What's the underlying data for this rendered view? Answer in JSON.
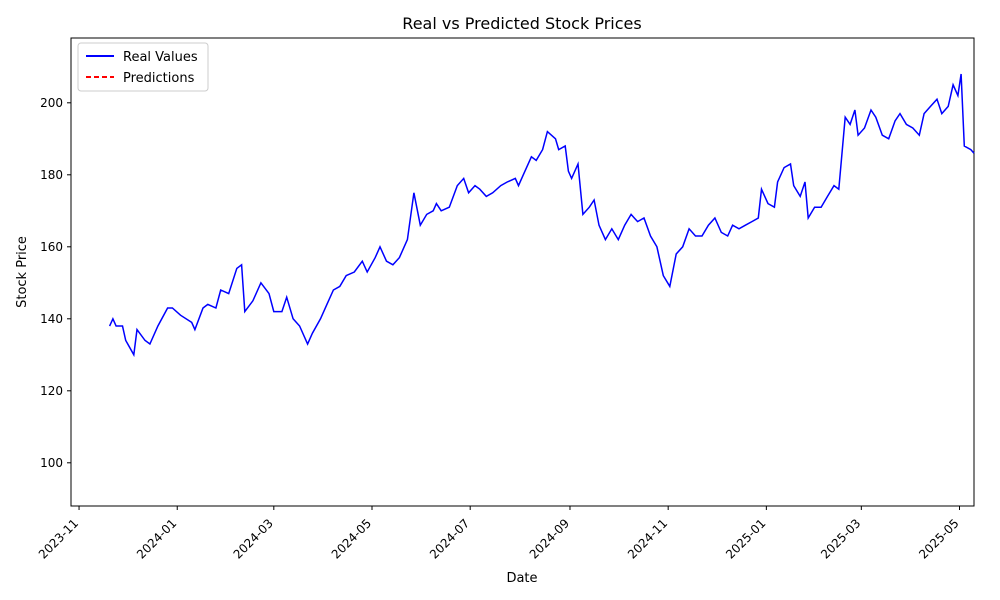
{
  "chart_data": {
    "type": "line",
    "title": "Real vs Predicted Stock Prices",
    "xlabel": "Date",
    "ylabel": "Stock Price",
    "x_ticks": [
      "2023-11",
      "2024-01",
      "2024-03",
      "2024-05",
      "2024-07",
      "2024-09",
      "2024-11",
      "2025-01",
      "2025-03",
      "2025-05"
    ],
    "y_ticks": [
      100,
      120,
      140,
      160,
      180,
      200
    ],
    "xlim": [
      "2023-10-27",
      "2025-05-10"
    ],
    "ylim": [
      88,
      218
    ],
    "grid": false,
    "legend_position": "top-left",
    "series": [
      {
        "name": "Real Values",
        "color": "#0000ff",
        "style": "solid",
        "points": [
          [
            "2023-11-20",
            138
          ],
          [
            "2023-11-22",
            140
          ],
          [
            "2023-11-24",
            138
          ],
          [
            "2023-11-28",
            138
          ],
          [
            "2023-11-30",
            134
          ],
          [
            "2023-12-05",
            130
          ],
          [
            "2023-12-07",
            137
          ],
          [
            "2023-12-12",
            134
          ],
          [
            "2023-12-15",
            133
          ],
          [
            "2023-12-20",
            138
          ],
          [
            "2023-12-26",
            143
          ],
          [
            "2023-12-29",
            143
          ],
          [
            "2024-01-03",
            141
          ],
          [
            "2024-01-10",
            139
          ],
          [
            "2024-01-12",
            137
          ],
          [
            "2024-01-17",
            143
          ],
          [
            "2024-01-20",
            144
          ],
          [
            "2024-01-25",
            143
          ],
          [
            "2024-01-28",
            148
          ],
          [
            "2024-02-02",
            147
          ],
          [
            "2024-02-07",
            154
          ],
          [
            "2024-02-10",
            155
          ],
          [
            "2024-02-12",
            142
          ],
          [
            "2024-02-17",
            145
          ],
          [
            "2024-02-22",
            150
          ],
          [
            "2024-02-27",
            147
          ],
          [
            "2024-03-01",
            142
          ],
          [
            "2024-03-06",
            142
          ],
          [
            "2024-03-09",
            146
          ],
          [
            "2024-03-13",
            140
          ],
          [
            "2024-03-17",
            138
          ],
          [
            "2024-03-22",
            133
          ],
          [
            "2024-03-25",
            136
          ],
          [
            "2024-03-30",
            140
          ],
          [
            "2024-04-03",
            144
          ],
          [
            "2024-04-07",
            148
          ],
          [
            "2024-04-11",
            149
          ],
          [
            "2024-04-15",
            152
          ],
          [
            "2024-04-20",
            153
          ],
          [
            "2024-04-25",
            156
          ],
          [
            "2024-04-28",
            153
          ],
          [
            "2024-05-03",
            157
          ],
          [
            "2024-05-06",
            160
          ],
          [
            "2024-05-10",
            156
          ],
          [
            "2024-05-14",
            155
          ],
          [
            "2024-05-18",
            157
          ],
          [
            "2024-05-23",
            162
          ],
          [
            "2024-05-27",
            175
          ],
          [
            "2024-05-31",
            166
          ],
          [
            "2024-06-04",
            169
          ],
          [
            "2024-06-08",
            170
          ],
          [
            "2024-06-10",
            172
          ],
          [
            "2024-06-13",
            170
          ],
          [
            "2024-06-18",
            171
          ],
          [
            "2024-06-23",
            177
          ],
          [
            "2024-06-27",
            179
          ],
          [
            "2024-06-30",
            175
          ],
          [
            "2024-07-04",
            177
          ],
          [
            "2024-07-07",
            176
          ],
          [
            "2024-07-11",
            174
          ],
          [
            "2024-07-15",
            175
          ],
          [
            "2024-07-20",
            177
          ],
          [
            "2024-07-24",
            178
          ],
          [
            "2024-07-29",
            179
          ],
          [
            "2024-07-31",
            177
          ],
          [
            "2024-08-03",
            180
          ],
          [
            "2024-08-08",
            185
          ],
          [
            "2024-08-11",
            184
          ],
          [
            "2024-08-15",
            187
          ],
          [
            "2024-08-18",
            192
          ],
          [
            "2024-08-23",
            190
          ],
          [
            "2024-08-25",
            187
          ],
          [
            "2024-08-29",
            188
          ],
          [
            "2024-08-31",
            181
          ],
          [
            "2024-09-02",
            179
          ],
          [
            "2024-09-06",
            183
          ],
          [
            "2024-09-09",
            169
          ],
          [
            "2024-09-13",
            171
          ],
          [
            "2024-09-16",
            173
          ],
          [
            "2024-09-19",
            166
          ],
          [
            "2024-09-23",
            162
          ],
          [
            "2024-09-27",
            165
          ],
          [
            "2024-10-01",
            162
          ],
          [
            "2024-10-05",
            166
          ],
          [
            "2024-10-09",
            169
          ],
          [
            "2024-10-13",
            167
          ],
          [
            "2024-10-17",
            168
          ],
          [
            "2024-10-21",
            163
          ],
          [
            "2024-10-25",
            160
          ],
          [
            "2024-10-29",
            152
          ],
          [
            "2024-11-02",
            149
          ],
          [
            "2024-11-06",
            158
          ],
          [
            "2024-11-10",
            160
          ],
          [
            "2024-11-14",
            165
          ],
          [
            "2024-11-18",
            163
          ],
          [
            "2024-11-22",
            163
          ],
          [
            "2024-11-26",
            166
          ],
          [
            "2024-11-30",
            168
          ],
          [
            "2024-12-04",
            164
          ],
          [
            "2024-12-08",
            163
          ],
          [
            "2024-12-11",
            166
          ],
          [
            "2024-12-15",
            165
          ],
          [
            "2024-12-19",
            166
          ],
          [
            "2024-12-23",
            167
          ],
          [
            "2024-12-27",
            168
          ],
          [
            "2024-12-29",
            176
          ],
          [
            "2025-01-02",
            172
          ],
          [
            "2025-01-06",
            171
          ],
          [
            "2025-01-08",
            178
          ],
          [
            "2025-01-12",
            182
          ],
          [
            "2025-01-16",
            183
          ],
          [
            "2025-01-18",
            177
          ],
          [
            "2025-01-22",
            174
          ],
          [
            "2025-01-25",
            178
          ],
          [
            "2025-01-27",
            168
          ],
          [
            "2025-01-31",
            171
          ],
          [
            "2025-02-04",
            171
          ],
          [
            "2025-02-08",
            174
          ],
          [
            "2025-02-12",
            177
          ],
          [
            "2025-02-15",
            176
          ],
          [
            "2025-02-19",
            196
          ],
          [
            "2025-02-22",
            194
          ],
          [
            "2025-02-25",
            198
          ],
          [
            "2025-02-27",
            191
          ],
          [
            "2025-03-03",
            193
          ],
          [
            "2025-03-07",
            198
          ],
          [
            "2025-03-10",
            196
          ],
          [
            "2025-03-14",
            191
          ],
          [
            "2025-03-18",
            190
          ],
          [
            "2025-03-22",
            195
          ],
          [
            "2025-03-25",
            197
          ],
          [
            "2025-03-29",
            194
          ],
          [
            "2025-04-02",
            193
          ],
          [
            "2025-04-06",
            191
          ],
          [
            "2025-04-09",
            197
          ],
          [
            "2025-04-13",
            199
          ],
          [
            "2025-04-17",
            201
          ],
          [
            "2025-04-20",
            197
          ],
          [
            "2025-04-24",
            199
          ],
          [
            "2025-04-27",
            205
          ],
          [
            "2025-04-30",
            202
          ],
          [
            "2025-05-02",
            208
          ],
          [
            "2025-05-04",
            188
          ],
          [
            "2025-05-08",
            187
          ],
          [
            "2025-05-10",
            186
          ]
        ]
      },
      {
        "name": "Predictions",
        "color": "#ff0000",
        "style": "dashed",
        "points": []
      }
    ]
  }
}
